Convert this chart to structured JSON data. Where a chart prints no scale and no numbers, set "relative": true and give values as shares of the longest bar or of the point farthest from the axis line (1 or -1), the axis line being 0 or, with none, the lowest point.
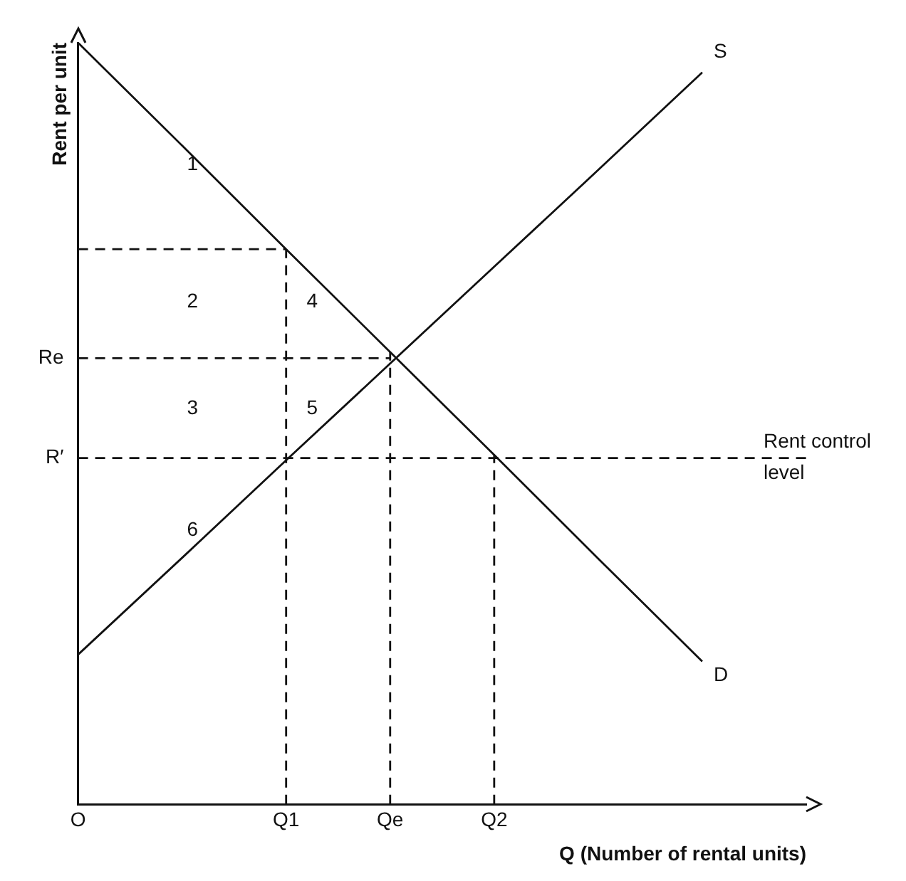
{
  "chart_data": {
    "type": "line",
    "relative": true,
    "ylabel": "Rent per unit",
    "xlabel": "Q (Number of rental units)",
    "categories": [
      "O",
      null,
      "Q1",
      "Qe",
      "Q2",
      null,
      null,
      null
    ],
    "marker": "none",
    "grid": false,
    "legend": false,
    "series": [
      {
        "name": "S",
        "color": "#111111",
        "values": [
          0.197,
          0.324,
          0.452,
          0.579,
          0.706,
          0.833,
          0.961,
          null
        ]
      },
      {
        "name": "D",
        "color": "#111111",
        "values": [
          1,
          0.865,
          0.729,
          0.594,
          0.459,
          0.323,
          0.188,
          null
        ]
      },
      {
        "color": "#111111",
        "line_style": "dashed",
        "values": [
          0.729,
          0.729,
          0.729,
          null,
          null,
          null,
          null,
          null
        ]
      },
      {
        "color": "#111111",
        "line_style": "dashed",
        "values": [
          0.586,
          0.586,
          0.586,
          0.586,
          null,
          null,
          null,
          null
        ]
      },
      {
        "color": "#111111",
        "line_style": "dashed",
        "values": [
          0.455,
          0.455,
          0.455,
          0.455,
          0.455,
          0.455,
          0.455,
          0.455
        ]
      }
    ],
    "ref_lines": [
      {
        "axis": "x",
        "value": "Q1",
        "line_style": "dashed"
      },
      {
        "axis": "x",
        "value": "Qe",
        "line_style": "dashed"
      },
      {
        "axis": "x",
        "value": "Q2",
        "line_style": "dashed"
      }
    ],
    "annotations": [
      {
        "text": "Re",
        "x": "O",
        "y": 0.586
      },
      {
        "text": "R′",
        "x": "O",
        "y": 0.455
      },
      "1",
      "2",
      "3",
      "6",
      "4",
      "5",
      "Rent control level"
    ]
  }
}
